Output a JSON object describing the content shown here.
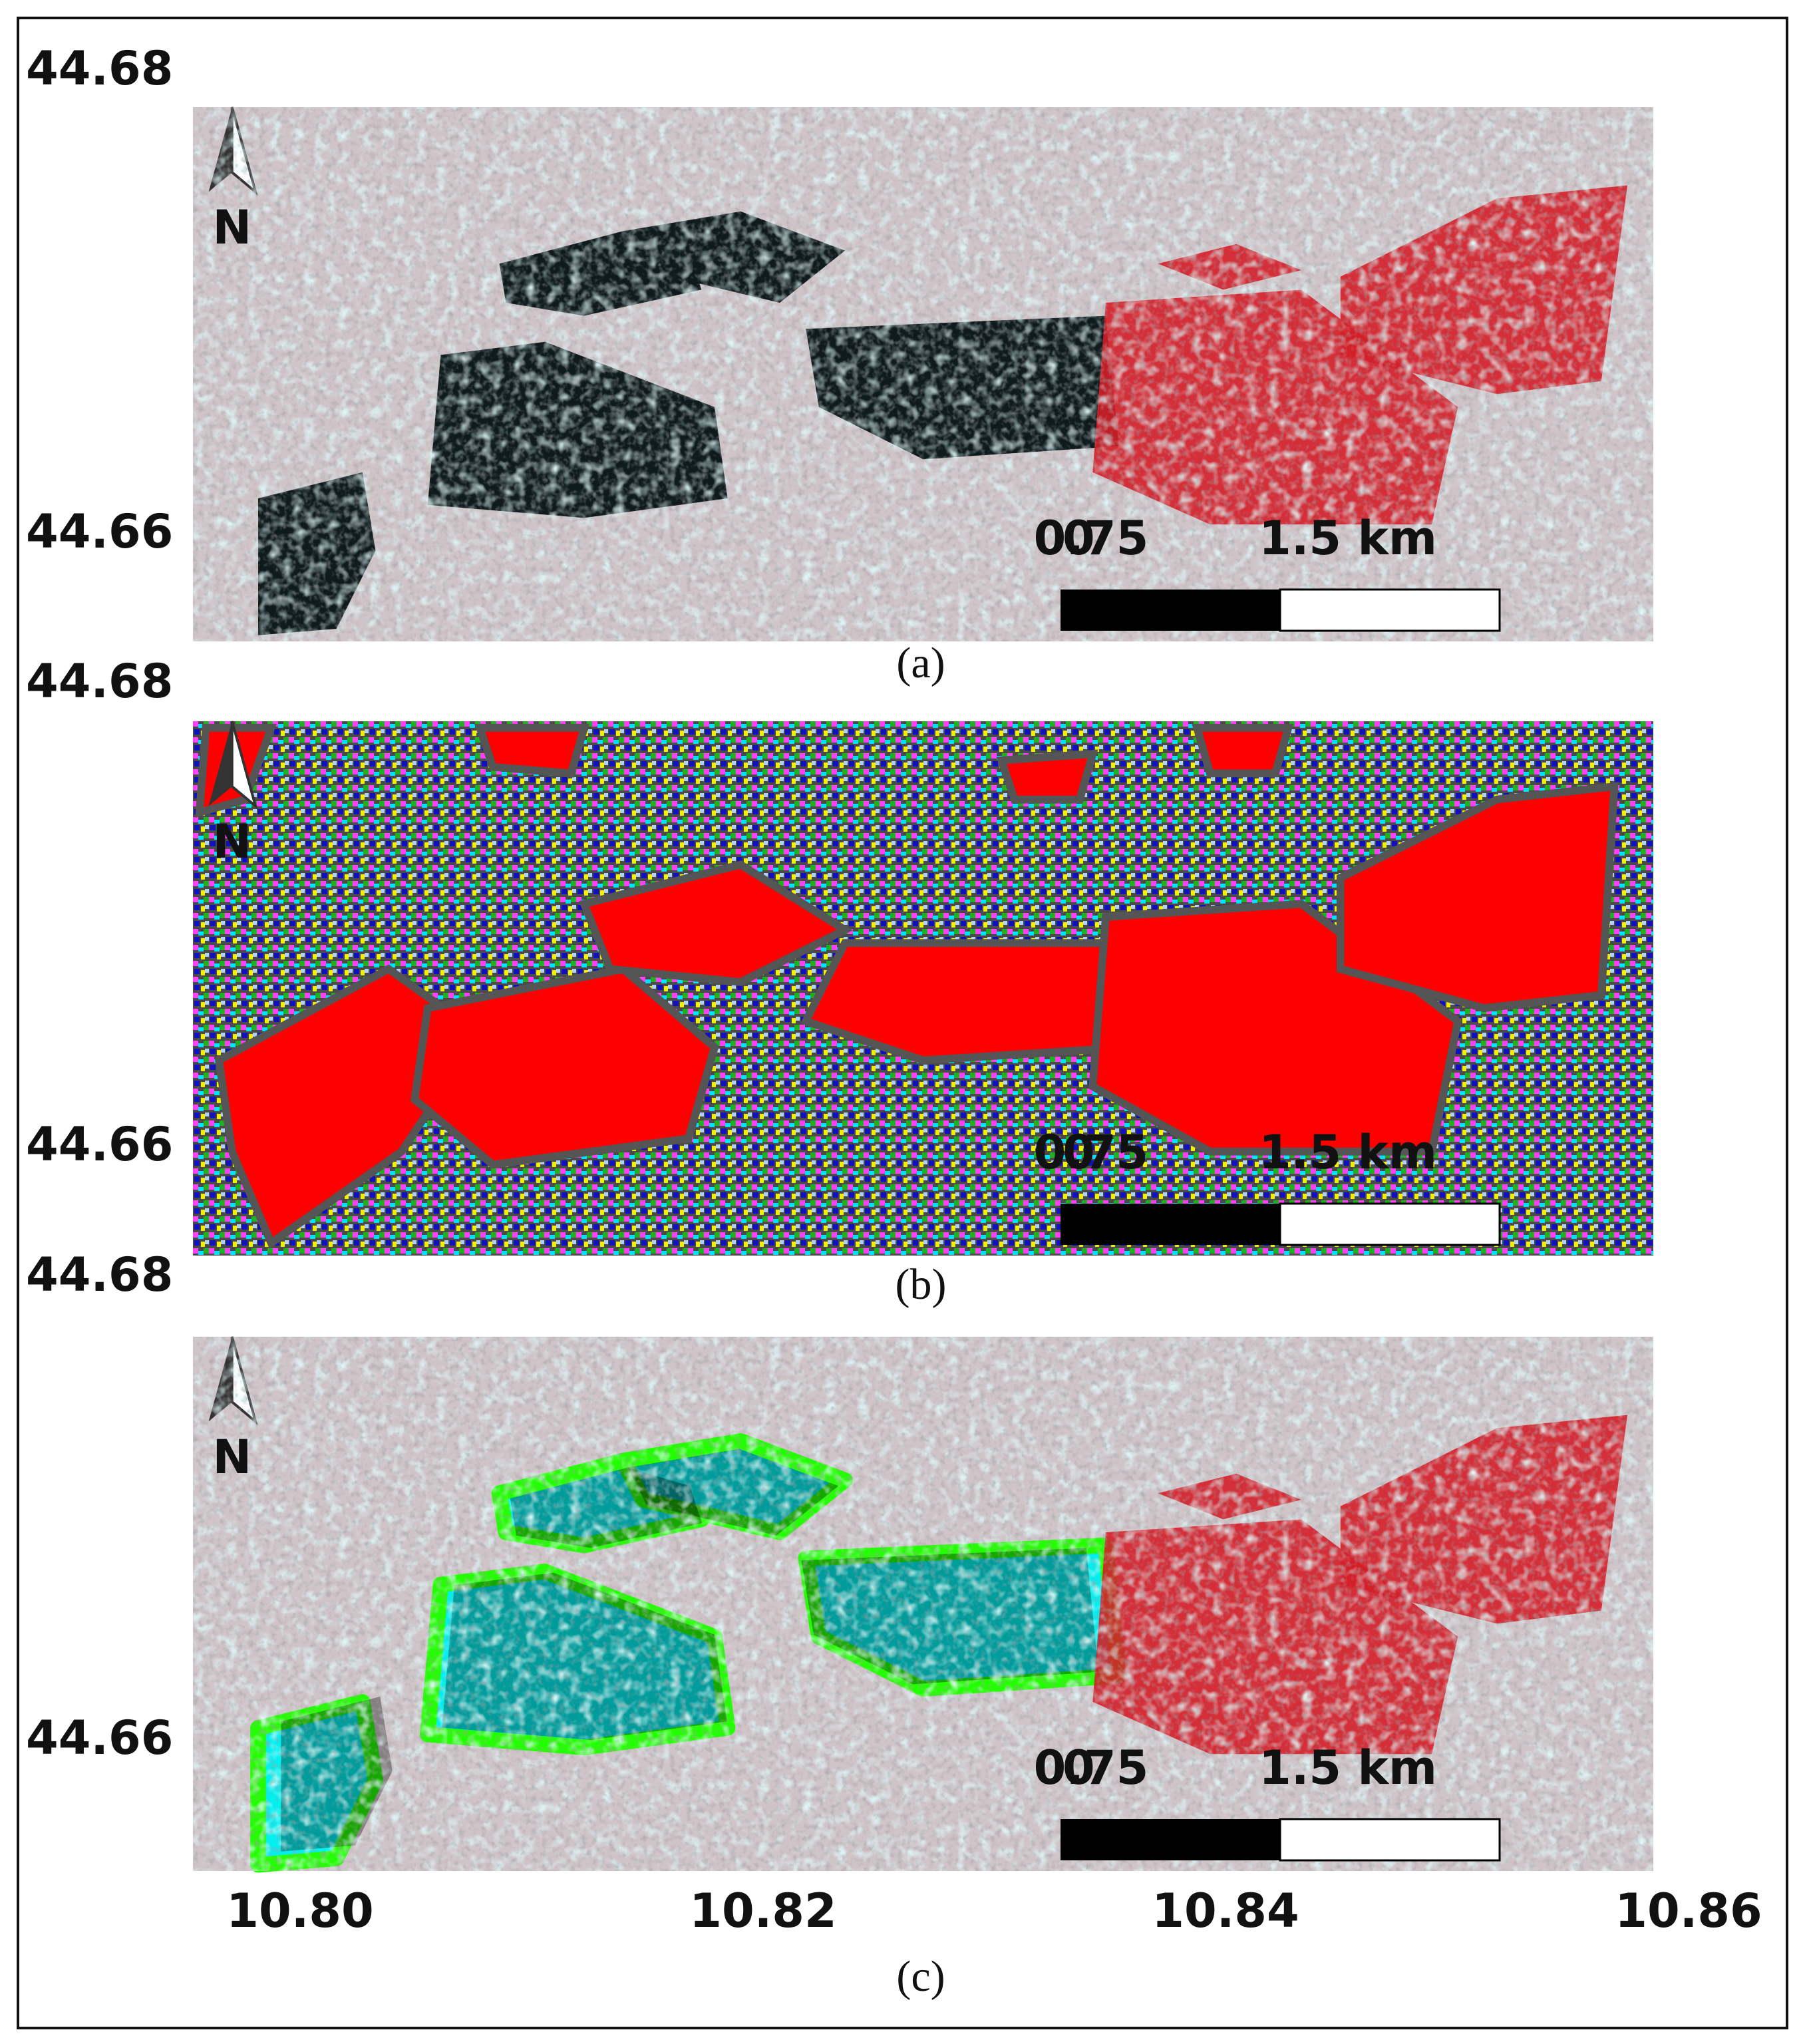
{
  "panels": [
    {
      "caption": "(a)",
      "lat_labels": [
        "44.68",
        "44.66"
      ],
      "north": "N",
      "scale_bar": [
        "0",
        "0.75",
        "1.5 km"
      ]
    },
    {
      "caption": "(b)",
      "lat_labels": [
        "44.68",
        "44.66"
      ],
      "north": "N",
      "scale_bar": [
        "0",
        "0.75",
        "1.5 km"
      ]
    },
    {
      "caption": "(c)",
      "lat_labels": [
        "44.68",
        "44.66"
      ],
      "north": "N",
      "scale_bar": [
        "0",
        "0.75",
        "1.5 km"
      ]
    }
  ],
  "lon_labels": [
    "10.80",
    "10.82",
    "10.84",
    "10.86"
  ]
}
